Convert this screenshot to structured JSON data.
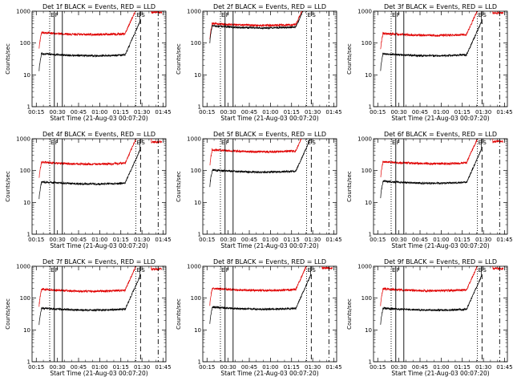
{
  "colors": {
    "events": "#000000",
    "lld": "#e00000",
    "background": "#ffffff"
  },
  "chart_data": {
    "type": "line",
    "layout": "3x3 grid",
    "xlabel": "Start Time (21-Aug-03 00:07:20)",
    "ylabel": "Counts/sec",
    "yscale": "log",
    "ylim": [
      1,
      1000
    ],
    "y_ticks": [
      "1",
      "10",
      "100",
      "1000"
    ],
    "xlim_min": [
      12,
      107
    ],
    "x_ticks": [
      {
        "min": 15,
        "label": "00:15"
      },
      {
        "min": 30,
        "label": "00:30"
      },
      {
        "min": 45,
        "label": "00:45"
      },
      {
        "min": 60,
        "label": "01:00"
      },
      {
        "min": 75,
        "label": "01:15"
      },
      {
        "min": 90,
        "label": "01:30"
      },
      {
        "min": 105,
        "label": "01:45"
      }
    ],
    "markers": [
      {
        "min": 24.5,
        "style": "dotted",
        "label": "E"
      },
      {
        "min": 27.8,
        "style": "solid",
        "label": "F"
      },
      {
        "min": 33.5,
        "style": "solid",
        "label": ""
      },
      {
        "min": 85.7,
        "style": "dotted",
        "label": "E"
      },
      {
        "min": 89.0,
        "style": "dashed",
        "label": "S"
      },
      {
        "min": 101.5,
        "style": "dashdot",
        "label": ""
      }
    ],
    "series_legend": [
      "BLACK = Events",
      "RED = LLD"
    ],
    "panels": [
      {
        "title": "Det 1f BLACK = Events, RED = LLD",
        "detector": "1f",
        "events_base": 40,
        "lld_base": 185
      },
      {
        "title": "Det 2f BLACK = Events, RED = LLD",
        "detector": "2f",
        "events_base": 300,
        "lld_base": 360
      },
      {
        "title": "Det 3f BLACK = Events, RED = LLD",
        "detector": "3f",
        "events_base": 40,
        "lld_base": 175
      },
      {
        "title": "Det 4f BLACK = Events, RED = LLD",
        "detector": "4f",
        "events_base": 38,
        "lld_base": 160
      },
      {
        "title": "Det 5f BLACK = Events, RED = LLD",
        "detector": "5f",
        "events_base": 90,
        "lld_base": 390
      },
      {
        "title": "Det 6f BLACK = Events, RED = LLD",
        "detector": "6f",
        "events_base": 40,
        "lld_base": 165
      },
      {
        "title": "Det 7f BLACK = Events, RED = LLD",
        "detector": "7f",
        "events_base": 42,
        "lld_base": 165
      },
      {
        "title": "Det 8f BLACK = Events, RED = LLD",
        "detector": "8f",
        "events_base": 45,
        "lld_base": 175
      },
      {
        "title": "Det 9f BLACK = Events, RED = LLD",
        "detector": "9f",
        "events_base": 42,
        "lld_base": 170
      }
    ]
  }
}
